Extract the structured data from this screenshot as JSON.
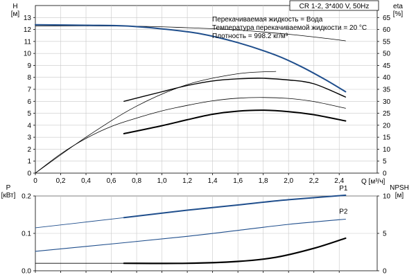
{
  "header": {
    "model": "CR 1-2, 3*400 V, 50Hz",
    "info_lines": [
      "Перекачиваемая жидкость = Вода",
      "Температура перекачиваемой жидкости = 20 °C",
      "Плотность = 998.2 кг/м³"
    ]
  },
  "colors": {
    "primary": "#1f4e8c",
    "secondary": "#000000",
    "grid": "#c8c8c8",
    "axis": "#000000"
  },
  "chart_data": [
    {
      "type": "line",
      "panel": "top",
      "left_axis": {
        "label_lines": [
          "H",
          "[м]"
        ],
        "ylim": [
          0,
          14
        ],
        "ticks": [
          0,
          1,
          2,
          3,
          4,
          5,
          6,
          7,
          8,
          9,
          10,
          11,
          12,
          13
        ]
      },
      "right_axis": {
        "label_lines": [
          "eta",
          "[%]"
        ],
        "ylim": [
          0,
          70
        ],
        "ticks": [
          0,
          5,
          10,
          15,
          20,
          25,
          30,
          35,
          40,
          45,
          50,
          55,
          60,
          65
        ]
      },
      "x_axis": {
        "label": "Q [м³/ч]",
        "xlim": [
          0,
          2.7
        ],
        "ticks": [
          0,
          0.2,
          0.4,
          0.6,
          0.8,
          1.0,
          1.2,
          1.4,
          1.6,
          1.8,
          2.0,
          2.2,
          2.4
        ],
        "tick_labels": [
          "0",
          "0,2",
          "0,4",
          "0,6",
          "0,8",
          "1,0",
          "1,2",
          "1,4",
          "1,6",
          "1,8",
          "2,0",
          "2,2",
          "2,4"
        ]
      },
      "series": [
        {
          "id": "H-thin",
          "axis": "left",
          "color": "#000000",
          "width": 0.8,
          "x": [
            0,
            0.4,
            0.8,
            1.2,
            1.6,
            2.0,
            2.3,
            2.45
          ],
          "y": [
            12.3,
            12.3,
            12.27,
            12.15,
            11.95,
            11.6,
            11.25,
            11.05
          ]
        },
        {
          "id": "H",
          "axis": "left",
          "color": "#1f4e8c",
          "width": 2,
          "x": [
            0,
            0.4,
            0.7,
            1.0,
            1.3,
            1.6,
            1.9,
            2.1,
            2.3,
            2.45
          ],
          "y": [
            12.4,
            12.35,
            12.3,
            12.05,
            11.65,
            10.9,
            9.85,
            8.9,
            7.75,
            6.8
          ]
        },
        {
          "id": "eta-thin",
          "axis": "right",
          "color": "#000000",
          "width": 0.8,
          "x": [
            0,
            0.2,
            0.4,
            0.6,
            0.8,
            1.0,
            1.2,
            1.4,
            1.6,
            1.8,
            2.0,
            2.2,
            2.45
          ],
          "y": [
            0,
            8,
            14.5,
            19.5,
            23,
            26,
            28.3,
            30.2,
            31.3,
            31.6,
            31.2,
            29.9,
            27.1
          ]
        },
        {
          "id": "eta",
          "axis": "right",
          "color": "#000000",
          "width": 2,
          "x": [
            0.7,
            1.0,
            1.2,
            1.4,
            1.6,
            1.8,
            2.0,
            2.2,
            2.45
          ],
          "y": [
            16.5,
            19.8,
            22.3,
            24.6,
            25.9,
            26.3,
            25.7,
            24.4,
            21.8
          ]
        },
        {
          "id": "power-thin",
          "axis": "right",
          "color": "#000000",
          "width": 0.8,
          "x": [
            0,
            0.4,
            0.8,
            1.2,
            1.6,
            1.9
          ],
          "y": [
            0,
            15,
            28,
            37,
            41.5,
            42.5
          ]
        },
        {
          "id": "eta-hi",
          "axis": "right",
          "color": "#000000",
          "width": 1.4,
          "x": [
            0.7,
            1.0,
            1.2,
            1.4,
            1.6,
            1.8,
            2.0,
            2.2,
            2.45
          ],
          "y": [
            30,
            34,
            36.6,
            38.5,
            39.4,
            39.6,
            38.9,
            37.3,
            31.8
          ]
        }
      ]
    },
    {
      "type": "line",
      "panel": "bottom",
      "left_axis": {
        "label_lines": [
          "P",
          "[кВт]"
        ],
        "ylim": [
          0,
          0.2
        ],
        "ticks": [
          0,
          0.1,
          0.2
        ],
        "tick_labels": [
          "0.0",
          "0.1",
          "0.2"
        ]
      },
      "right_axis": {
        "label_lines": [
          "NPSH",
          "[м]"
        ],
        "ylim": [
          0,
          10
        ],
        "ticks": [
          0,
          5,
          10
        ]
      },
      "x_axis": {
        "xlim": [
          0,
          2.7
        ]
      },
      "series": [
        {
          "id": "P1-thin",
          "name": "P1",
          "axis": "left",
          "color": "#1f4e8c",
          "width": 0.9,
          "x": [
            0,
            0.7
          ],
          "y": [
            0.115,
            0.142
          ]
        },
        {
          "id": "P1",
          "name": "P1",
          "axis": "left",
          "color": "#1f4e8c",
          "width": 2,
          "x": [
            0.7,
            1.2,
            1.6,
            2.0,
            2.45
          ],
          "y": [
            0.142,
            0.162,
            0.176,
            0.19,
            0.202
          ]
        },
        {
          "id": "P2",
          "name": "P2",
          "axis": "left",
          "color": "#1f4e8c",
          "width": 1.1,
          "x": [
            0,
            0.7,
            1.2,
            1.6,
            2.0,
            2.45
          ],
          "y": [
            0.052,
            0.075,
            0.092,
            0.108,
            0.124,
            0.138
          ]
        },
        {
          "id": "NPSH-thin",
          "axis": "right",
          "color": "#000000",
          "width": 0.8,
          "x": [
            0,
            0.7
          ],
          "y": [
            1.0,
            1.0
          ]
        },
        {
          "id": "NPSH",
          "axis": "right",
          "color": "#000000",
          "width": 2.2,
          "x": [
            0.7,
            1.2,
            1.6,
            1.9,
            2.2,
            2.45
          ],
          "y": [
            1.0,
            1.0,
            1.25,
            1.8,
            3.0,
            4.35
          ]
        }
      ],
      "labels": [
        {
          "text": "P1",
          "x": 2.4,
          "y": 0.215
        },
        {
          "text": "P2",
          "x": 2.4,
          "y": 0.153
        }
      ]
    }
  ]
}
